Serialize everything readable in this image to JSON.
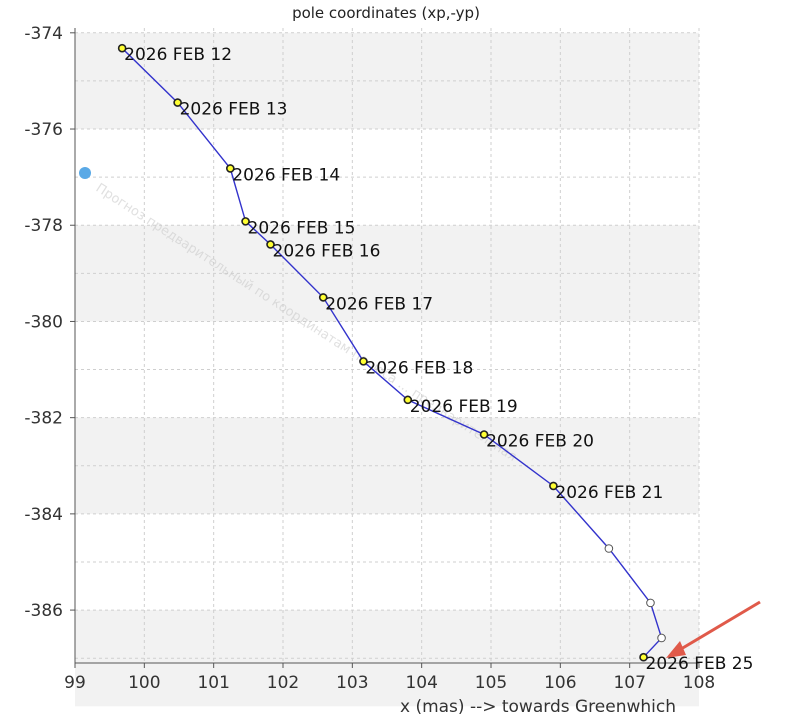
{
  "chart_data": {
    "type": "line",
    "title": "pole coordinates (xp,-yp)",
    "xlabel": "x (mas) --> towards Greenwhich",
    "ylabel": "",
    "xlim": [
      99,
      108
    ],
    "ylim": [
      -387.1,
      -373.9
    ],
    "xticks": [
      99,
      100,
      101,
      102,
      103,
      104,
      105,
      106,
      107,
      108
    ],
    "yticks": [
      -374,
      -376,
      -378,
      -380,
      -382,
      -384,
      -386
    ],
    "grid": true,
    "line_color": "#3333cc",
    "band_color": "#f2f2f2",
    "series": [
      {
        "points": [
          {
            "x": 99.68,
            "y": -374.32,
            "label": "2026 FEB 12",
            "kind": "observed"
          },
          {
            "x": 100.48,
            "y": -375.45,
            "label": "2026 FEB 13",
            "kind": "observed"
          },
          {
            "x": 101.24,
            "y": -376.82,
            "label": "2026 FEB 14",
            "kind": "observed"
          },
          {
            "x": 101.46,
            "y": -377.92,
            "label": "2026 FEB 15",
            "kind": "observed"
          },
          {
            "x": 101.82,
            "y": -378.4,
            "label": "2026 FEB 16",
            "kind": "observed"
          },
          {
            "x": 102.58,
            "y": -379.5,
            "label": "2026 FEB 17",
            "kind": "observed"
          },
          {
            "x": 103.16,
            "y": -380.83,
            "label": "2026 FEB 18",
            "kind": "observed"
          },
          {
            "x": 103.8,
            "y": -381.63,
            "label": "2026 FEB 19",
            "kind": "observed"
          },
          {
            "x": 104.9,
            "y": -382.35,
            "label": "2026 FEB 20",
            "kind": "observed"
          },
          {
            "x": 105.9,
            "y": -383.42,
            "label": "2026 FEB 21",
            "kind": "observed"
          },
          {
            "x": 106.7,
            "y": -384.72,
            "label": "",
            "kind": "predicted"
          },
          {
            "x": 107.3,
            "y": -385.85,
            "label": "",
            "kind": "predicted"
          },
          {
            "x": 107.46,
            "y": -386.58,
            "label": "",
            "kind": "predicted"
          },
          {
            "x": 107.2,
            "y": -386.98,
            "label": "2026 FEB 25",
            "kind": "observed"
          }
        ]
      }
    ]
  },
  "watermark_text": "Прогноз предварительный по координатам полюса ... предварительная"
}
